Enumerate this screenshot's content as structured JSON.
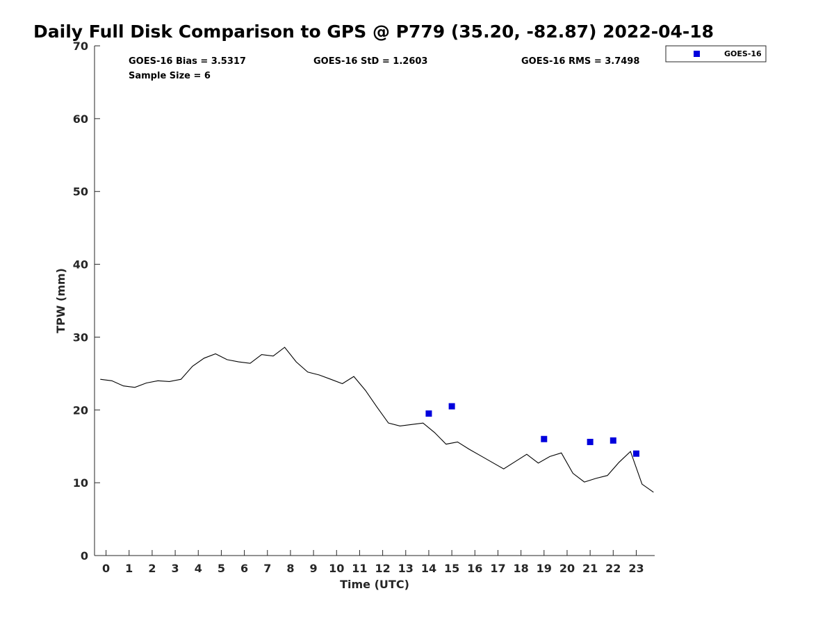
{
  "chart_data": {
    "type": "line",
    "title": "Daily Full Disk Comparison to GPS @ P779 (35.20, -82.87) 2022-04-18",
    "xlabel": "Time (UTC)",
    "ylabel": "TPW (mm)",
    "xlim": [
      -0.5,
      23.8
    ],
    "ylim": [
      0,
      70
    ],
    "xticks": [
      0,
      1,
      2,
      3,
      4,
      5,
      6,
      7,
      8,
      9,
      10,
      11,
      12,
      13,
      14,
      15,
      16,
      17,
      18,
      19,
      20,
      21,
      22,
      23
    ],
    "yticks": [
      0,
      10,
      20,
      30,
      40,
      50,
      60,
      70
    ],
    "grid": false,
    "legend_position": "top-right",
    "stats": {
      "bias": "GOES-16 Bias = 3.5317",
      "std": "GOES-16 StD = 1.2603",
      "rms": "GOES-16 RMS = 3.7498",
      "sample": "Sample Size = 6"
    },
    "series": [
      {
        "kind": "line",
        "color": "#000000",
        "x": [
          -0.25,
          0.25,
          0.75,
          1.25,
          1.75,
          2.25,
          2.75,
          3.25,
          3.75,
          4.25,
          4.75,
          5.25,
          5.75,
          6.25,
          6.75,
          7.25,
          7.75,
          8.25,
          8.75,
          9.25,
          9.75,
          10.25,
          10.75,
          11.25,
          11.75,
          12.25,
          12.75,
          13.25,
          13.75,
          14.25,
          14.75,
          15.25,
          15.75,
          16.25,
          16.75,
          17.25,
          17.75,
          18.25,
          18.75,
          19.25,
          19.75,
          20.25,
          20.75,
          21.25,
          21.75,
          22.25,
          22.75,
          23.25,
          23.75
        ],
        "y": [
          24.2,
          24.0,
          23.3,
          23.1,
          23.7,
          24.0,
          23.9,
          24.2,
          26.0,
          27.1,
          27.7,
          26.9,
          26.6,
          26.4,
          27.6,
          27.4,
          28.6,
          26.6,
          25.2,
          24.8,
          24.2,
          23.6,
          24.6,
          22.7,
          20.4,
          18.2,
          17.8,
          18.0,
          18.2,
          16.9,
          15.3,
          15.6,
          14.6,
          13.7,
          12.8,
          11.9,
          12.9,
          13.9,
          12.7,
          13.6,
          14.1,
          11.3,
          10.1,
          10.6,
          11.0,
          12.8,
          14.3,
          9.8,
          8.7
        ]
      },
      {
        "kind": "scatter",
        "name": "GOES-16",
        "color": "#0000dd",
        "x": [
          14,
          15,
          19,
          21,
          22,
          23
        ],
        "y": [
          19.5,
          20.5,
          16.0,
          15.6,
          15.8,
          14.0
        ]
      }
    ]
  }
}
